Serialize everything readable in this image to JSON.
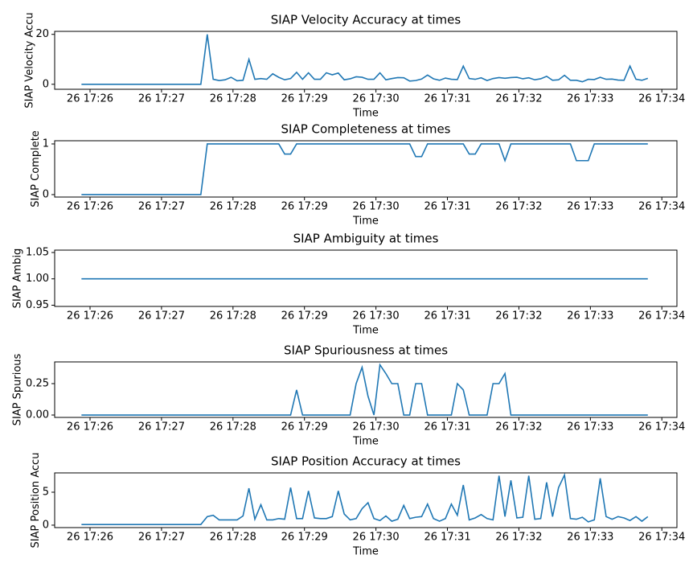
{
  "chart_data": [
    {
      "type": "line",
      "title": "SIAP Velocity Accuracy at times",
      "xlabel": "Time",
      "ylabel": "SIAP Velocity Accu",
      "color": "#1f77b4",
      "x": [
        25.88,
        27.55,
        27.64,
        27.723,
        27.807,
        27.89,
        27.973,
        28.057,
        28.14,
        28.223,
        28.306,
        28.39,
        28.473,
        28.556,
        28.64,
        28.723,
        28.806,
        28.89,
        28.973,
        29.056,
        29.139,
        29.223,
        29.306,
        29.389,
        29.473,
        29.556,
        29.639,
        29.723,
        29.806,
        29.889,
        29.972,
        30.056,
        30.139,
        30.222,
        30.306,
        30.389,
        30.472,
        30.556,
        30.639,
        30.722,
        30.805,
        30.889,
        30.972,
        31.055,
        31.139,
        31.222,
        31.305,
        31.389,
        31.472,
        31.555,
        31.638,
        31.722,
        31.805,
        31.888,
        31.972,
        32.055,
        32.138,
        32.222,
        32.305,
        32.388,
        32.471,
        32.555,
        32.638,
        32.721,
        32.805,
        32.888,
        32.971,
        33.055,
        33.138,
        33.221,
        33.304,
        33.388,
        33.471,
        33.554,
        33.638,
        33.721,
        33.804
      ],
      "values": [
        0,
        0,
        20,
        2,
        1.5,
        1.8,
        2.8,
        1.4,
        1.6,
        10,
        2,
        2.3,
        2,
        4.2,
        2.8,
        1.8,
        2.3,
        4.8,
        2,
        4.6,
        2,
        2,
        4.6,
        3.8,
        4.5,
        1.8,
        2.2,
        3,
        2.8,
        2,
        2,
        4.6,
        1.8,
        2.3,
        2.7,
        2.6,
        1.3,
        1.5,
        2.1,
        3.7,
        2.2,
        1.6,
        2.5,
        2,
        1.9,
        7.3,
        2.3,
        2,
        2.6,
        1.5,
        2.3,
        2.7,
        2.4,
        2.7,
        2.8,
        2.2,
        2.6,
        1.8,
        2.2,
        3.2,
        1.6,
        1.8,
        3.6,
        1.6,
        1.6,
        1,
        2,
        1.9,
        2.8,
        2,
        2.1,
        1.7,
        1.6,
        7.3,
        2,
        1.6,
        2.4
      ],
      "xlim": [
        25.505,
        34.211
      ],
      "xticks": [
        {
          "value": 26,
          "label": "26 17:26"
        },
        {
          "value": 27,
          "label": "26 17:27"
        },
        {
          "value": 28,
          "label": "26 17:28"
        },
        {
          "value": 29,
          "label": "26 17:29"
        },
        {
          "value": 30,
          "label": "26 17:30"
        },
        {
          "value": 31,
          "label": "26 17:31"
        },
        {
          "value": 32,
          "label": "26 17:32"
        },
        {
          "value": 33,
          "label": "26 17:33"
        },
        {
          "value": 34,
          "label": "26 17:34"
        }
      ],
      "ylim": [
        -2,
        21.2
      ],
      "yticks": [
        0,
        20
      ]
    },
    {
      "type": "line",
      "title": "SIAP Completeness at times",
      "xlabel": "Time",
      "ylabel": "SIAP Complete",
      "color": "#1f77b4",
      "x": [
        25.88,
        27.55,
        27.64,
        27.723,
        27.807,
        27.89,
        27.973,
        28.057,
        28.14,
        28.223,
        28.306,
        28.39,
        28.473,
        28.556,
        28.64,
        28.723,
        28.806,
        28.89,
        28.973,
        29.056,
        29.139,
        29.223,
        29.306,
        29.389,
        29.473,
        29.556,
        29.639,
        29.723,
        29.806,
        29.889,
        29.972,
        30.056,
        30.139,
        30.222,
        30.306,
        30.389,
        30.472,
        30.556,
        30.639,
        30.722,
        30.805,
        30.889,
        30.972,
        31.055,
        31.139,
        31.222,
        31.305,
        31.389,
        31.472,
        31.555,
        31.638,
        31.722,
        31.805,
        31.888,
        31.972,
        32.055,
        32.138,
        32.222,
        32.305,
        32.388,
        32.471,
        32.555,
        32.638,
        32.721,
        32.805,
        32.888,
        32.971,
        33.055,
        33.138,
        33.221,
        33.304,
        33.388,
        33.471,
        33.554,
        33.638,
        33.721,
        33.804
      ],
      "values": [
        0,
        0,
        1,
        1,
        1,
        1,
        1,
        1,
        1,
        1,
        1,
        1,
        1,
        1,
        1,
        0.8,
        0.8,
        1,
        1,
        1,
        1,
        1,
        1,
        1,
        1,
        1,
        1,
        1,
        1,
        1,
        1,
        1,
        1,
        1,
        1,
        1,
        1,
        0.75,
        0.75,
        1,
        1,
        1,
        1,
        1,
        1,
        1,
        0.8,
        0.8,
        1,
        1,
        1,
        1,
        0.67,
        1,
        1,
        1,
        1,
        1,
        1,
        1,
        1,
        1,
        1,
        1,
        0.67,
        0.67,
        0.67,
        1,
        1,
        1,
        1,
        1,
        1,
        1,
        1,
        1,
        1
      ],
      "xlim": [
        25.505,
        34.211
      ],
      "xticks": [
        {
          "value": 26,
          "label": "26 17:26"
        },
        {
          "value": 27,
          "label": "26 17:27"
        },
        {
          "value": 28,
          "label": "26 17:28"
        },
        {
          "value": 29,
          "label": "26 17:29"
        },
        {
          "value": 30,
          "label": "26 17:30"
        },
        {
          "value": 31,
          "label": "26 17:31"
        },
        {
          "value": 32,
          "label": "26 17:32"
        },
        {
          "value": 33,
          "label": "26 17:33"
        },
        {
          "value": 34,
          "label": "26 17:34"
        }
      ],
      "ylim": [
        -0.048,
        1.063
      ],
      "yticks": [
        0,
        1
      ]
    },
    {
      "type": "line",
      "title": "SIAP Ambiguity at times",
      "xlabel": "Time",
      "ylabel": "SIAP Ambig",
      "color": "#1f77b4",
      "x": [
        25.88,
        27.55,
        27.64,
        27.723,
        27.807,
        27.89,
        27.973,
        28.057,
        28.14,
        28.223,
        28.306,
        28.39,
        28.473,
        28.556,
        28.64,
        28.723,
        28.806,
        28.89,
        28.973,
        29.056,
        29.139,
        29.223,
        29.306,
        29.389,
        29.473,
        29.556,
        29.639,
        29.723,
        29.806,
        29.889,
        29.972,
        30.056,
        30.139,
        30.222,
        30.306,
        30.389,
        30.472,
        30.556,
        30.639,
        30.722,
        30.805,
        30.889,
        30.972,
        31.055,
        31.139,
        31.222,
        31.305,
        31.389,
        31.472,
        31.555,
        31.638,
        31.722,
        31.805,
        31.888,
        31.972,
        32.055,
        32.138,
        32.222,
        32.305,
        32.388,
        32.471,
        32.555,
        32.638,
        32.721,
        32.805,
        32.888,
        32.971,
        33.055,
        33.138,
        33.221,
        33.304,
        33.388,
        33.471,
        33.554,
        33.638,
        33.721,
        33.804
      ],
      "values": [
        1,
        1,
        1,
        1,
        1,
        1,
        1,
        1,
        1,
        1,
        1,
        1,
        1,
        1,
        1,
        1,
        1,
        1,
        1,
        1,
        1,
        1,
        1,
        1,
        1,
        1,
        1,
        1,
        1,
        1,
        1,
        1,
        1,
        1,
        1,
        1,
        1,
        1,
        1,
        1,
        1,
        1,
        1,
        1,
        1,
        1,
        1,
        1,
        1,
        1,
        1,
        1,
        1,
        1,
        1,
        1,
        1,
        1,
        1,
        1,
        1,
        1,
        1,
        1,
        1,
        1,
        1,
        1,
        1,
        1,
        1,
        1,
        1,
        1,
        1,
        1,
        1
      ],
      "xlim": [
        25.505,
        34.211
      ],
      "xticks": [
        {
          "value": 26,
          "label": "26 17:26"
        },
        {
          "value": 27,
          "label": "26 17:27"
        },
        {
          "value": 28,
          "label": "26 17:28"
        },
        {
          "value": 29,
          "label": "26 17:29"
        },
        {
          "value": 30,
          "label": "26 17:30"
        },
        {
          "value": 31,
          "label": "26 17:31"
        },
        {
          "value": 32,
          "label": "26 17:32"
        },
        {
          "value": 33,
          "label": "26 17:33"
        },
        {
          "value": 34,
          "label": "26 17:34"
        }
      ],
      "ylim": [
        0.9477,
        1.0545
      ],
      "yticks": [
        {
          "value": 0.95,
          "label": "0.95"
        },
        {
          "value": 1,
          "label": "1.00"
        },
        {
          "value": 1.05,
          "label": "1.05"
        }
      ]
    },
    {
      "type": "line",
      "title": "SIAP Spuriousness at times",
      "xlabel": "Time",
      "ylabel": "SIAP Spurious",
      "color": "#1f77b4",
      "x": [
        25.88,
        27.55,
        27.64,
        27.723,
        27.807,
        27.89,
        27.973,
        28.057,
        28.14,
        28.223,
        28.306,
        28.39,
        28.473,
        28.556,
        28.64,
        28.723,
        28.806,
        28.89,
        28.973,
        29.056,
        29.139,
        29.223,
        29.306,
        29.389,
        29.473,
        29.556,
        29.639,
        29.723,
        29.806,
        29.889,
        29.972,
        30.056,
        30.139,
        30.222,
        30.306,
        30.389,
        30.472,
        30.556,
        30.639,
        30.722,
        30.805,
        30.889,
        30.972,
        31.055,
        31.139,
        31.222,
        31.305,
        31.389,
        31.472,
        31.555,
        31.638,
        31.722,
        31.805,
        31.888,
        31.972,
        32.055,
        32.138,
        32.222,
        32.305,
        32.388,
        32.471,
        32.555,
        32.638,
        32.721,
        32.805,
        32.888,
        32.971,
        33.055,
        33.138,
        33.221,
        33.304,
        33.388,
        33.471,
        33.554,
        33.638,
        33.721,
        33.804
      ],
      "values": [
        0,
        0,
        0,
        0,
        0,
        0,
        0,
        0,
        0,
        0,
        0,
        0,
        0,
        0,
        0,
        0,
        0,
        0.2,
        0,
        0,
        0,
        0,
        0,
        0,
        0,
        0,
        0,
        0.25,
        0.38,
        0.15,
        0,
        0.4,
        0.33,
        0.25,
        0.25,
        0,
        0,
        0.25,
        0.25,
        0,
        0,
        0,
        0,
        0,
        0.25,
        0.2,
        0,
        0,
        0,
        0,
        0.25,
        0.25,
        0.33,
        0,
        0,
        0,
        0,
        0,
        0,
        0,
        0,
        0,
        0,
        0,
        0,
        0,
        0,
        0,
        0,
        0,
        0,
        0,
        0,
        0,
        0,
        0,
        0
      ],
      "xlim": [
        25.505,
        34.211
      ],
      "xticks": [
        {
          "value": 26,
          "label": "26 17:26"
        },
        {
          "value": 27,
          "label": "26 17:27"
        },
        {
          "value": 28,
          "label": "26 17:28"
        },
        {
          "value": 29,
          "label": "26 17:29"
        },
        {
          "value": 30,
          "label": "26 17:30"
        },
        {
          "value": 31,
          "label": "26 17:31"
        },
        {
          "value": 32,
          "label": "26 17:32"
        },
        {
          "value": 33,
          "label": "26 17:33"
        },
        {
          "value": 34,
          "label": "26 17:34"
        }
      ],
      "ylim": [
        -0.019,
        0.423
      ],
      "yticks": [
        {
          "value": 0,
          "label": "0.00"
        },
        0.25
      ]
    },
    {
      "type": "line",
      "title": "SIAP Position Accuracy at times",
      "xlabel": "Time",
      "ylabel": "SIAP Position Accu",
      "color": "#1f77b4",
      "x": [
        25.88,
        27.55,
        27.64,
        27.723,
        27.807,
        27.89,
        27.973,
        28.057,
        28.14,
        28.223,
        28.306,
        28.39,
        28.473,
        28.556,
        28.64,
        28.723,
        28.806,
        28.89,
        28.973,
        29.056,
        29.139,
        29.223,
        29.306,
        29.389,
        29.473,
        29.556,
        29.639,
        29.723,
        29.806,
        29.889,
        29.972,
        30.056,
        30.139,
        30.222,
        30.306,
        30.389,
        30.472,
        30.556,
        30.639,
        30.722,
        30.805,
        30.889,
        30.972,
        31.055,
        31.139,
        31.222,
        31.305,
        31.389,
        31.472,
        31.555,
        31.638,
        31.722,
        31.805,
        31.888,
        31.972,
        32.055,
        32.138,
        32.222,
        32.305,
        32.388,
        32.471,
        32.555,
        32.638,
        32.721,
        32.805,
        32.888,
        32.971,
        33.055,
        33.138,
        33.221,
        33.304,
        33.388,
        33.471,
        33.554,
        33.638,
        33.721,
        33.804
      ],
      "values": [
        0.1,
        0.1,
        1.3,
        1.5,
        0.8,
        0.8,
        0.8,
        0.8,
        1.4,
        5.6,
        0.9,
        3.1,
        0.8,
        0.8,
        1,
        0.9,
        5.7,
        1,
        1,
        5.2,
        1.1,
        1,
        1,
        1.3,
        5.2,
        1.7,
        0.8,
        1,
        2.5,
        3.4,
        1,
        0.7,
        1.4,
        0.6,
        0.9,
        3,
        1,
        1.2,
        1.3,
        3.2,
        1,
        0.6,
        1,
        3.2,
        1.5,
        6.1,
        0.8,
        1.1,
        1.6,
        1,
        0.8,
        7.5,
        1.3,
        6.8,
        1.1,
        1.2,
        7.5,
        0.9,
        1,
        6.5,
        1.3,
        5.7,
        7.6,
        1,
        0.9,
        1.2,
        0.5,
        0.8,
        7.1,
        1.3,
        0.9,
        1.3,
        1.1,
        0.7,
        1.3,
        0.6,
        1.3
      ],
      "xlim": [
        25.505,
        34.211
      ],
      "xticks": [
        {
          "value": 26,
          "label": "26 17:26"
        },
        {
          "value": 27,
          "label": "26 17:27"
        },
        {
          "value": 28,
          "label": "26 17:28"
        },
        {
          "value": 29,
          "label": "26 17:29"
        },
        {
          "value": 30,
          "label": "26 17:30"
        },
        {
          "value": 31,
          "label": "26 17:31"
        },
        {
          "value": 32,
          "label": "26 17:32"
        },
        {
          "value": 33,
          "label": "26 17:33"
        },
        {
          "value": 34,
          "label": "26 17:34"
        }
      ],
      "ylim": [
        -0.37,
        7.93
      ],
      "yticks": [
        0,
        5
      ]
    }
  ]
}
